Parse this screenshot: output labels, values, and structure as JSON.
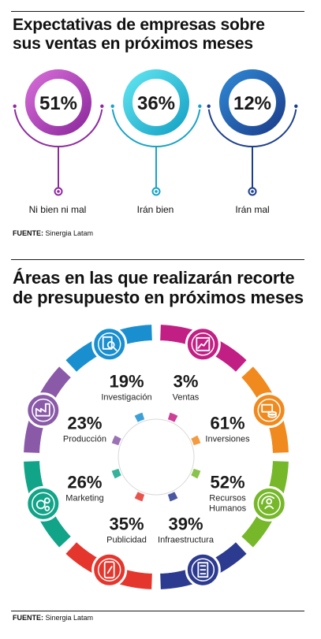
{
  "header": {
    "title_line1": "Expectativas de empresas sobre",
    "title_line2": "sus ventas en próximos meses"
  },
  "expectations": {
    "items": [
      {
        "percent": "51%",
        "label": "Ni bien ni mal",
        "color_main": "#8e2a9e",
        "color_light": "#d46bd6"
      },
      {
        "percent": "36%",
        "label": "Irán bien",
        "color_main": "#18a3c6",
        "color_light": "#5fe3ef"
      },
      {
        "percent": "12%",
        "label": "Irán mal",
        "color_main": "#1c3f8c",
        "color_light": "#2e86d2"
      }
    ],
    "source_label": "FUENTE:",
    "source_text": "Sinergia Latam"
  },
  "cuts": {
    "title_line1": "Áreas en las que realizarán recorte",
    "title_line2": "de presupuesto en próximos meses",
    "items": [
      {
        "area": "Ventas",
        "percent": "3%",
        "color": "#c21f84",
        "icon": "chart-growth-icon"
      },
      {
        "area": "Inversiones",
        "percent": "61%",
        "color": "#f08a1e",
        "icon": "money-coins-icon"
      },
      {
        "area": "Recursos Humanos",
        "area_line1": "Recursos",
        "area_line2": "Humanos",
        "percent": "52%",
        "color": "#76b82a",
        "icon": "people-cycle-icon"
      },
      {
        "area": "Infraestructura",
        "percent": "39%",
        "color": "#2c3b8f",
        "icon": "building-icon"
      },
      {
        "area": "Publicidad",
        "percent": "35%",
        "color": "#e4362c",
        "icon": "phone-icon"
      },
      {
        "area": "Marketing",
        "percent": "26%",
        "color": "#12a489",
        "icon": "gears-icon"
      },
      {
        "area": "Producción",
        "percent": "23%",
        "color": "#8a5aa8",
        "icon": "factory-icon"
      },
      {
        "area": "Investigación",
        "percent": "19%",
        "color": "#1a8fd0",
        "icon": "search-document-icon"
      }
    ],
    "source_label": "FUENTE:",
    "source_text": "Sinergia Latam"
  },
  "chart_data": [
    {
      "type": "bar",
      "title": "Expectativas de empresas sobre sus ventas en próximos meses",
      "categories": [
        "Ni bien ni mal",
        "Irán bien",
        "Irán mal"
      ],
      "values": [
        51,
        36,
        12
      ],
      "unit": "%"
    },
    {
      "type": "bar",
      "title": "Áreas en las que realizarán recorte de presupuesto en próximos meses",
      "categories": [
        "Ventas",
        "Inversiones",
        "Recursos Humanos",
        "Infraestructura",
        "Publicidad",
        "Marketing",
        "Producción",
        "Investigación"
      ],
      "values": [
        3,
        61,
        52,
        39,
        35,
        26,
        23,
        19
      ],
      "unit": "%"
    }
  ]
}
